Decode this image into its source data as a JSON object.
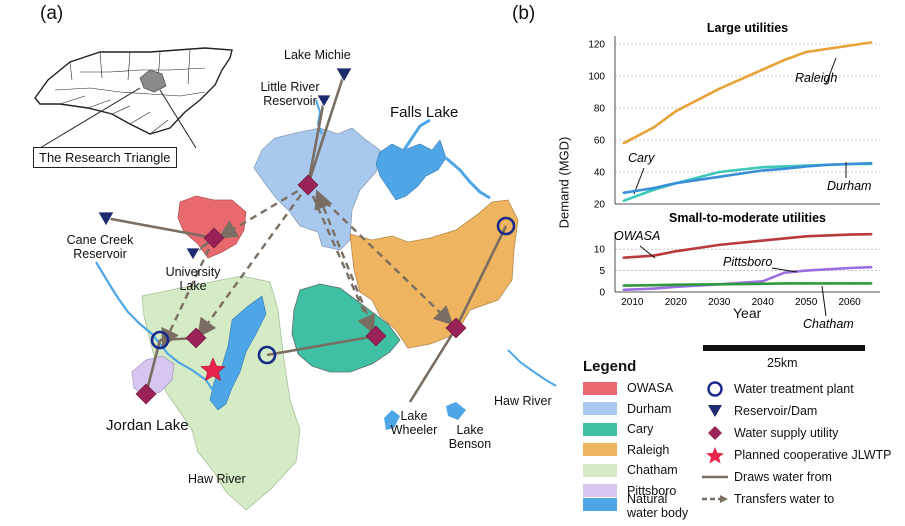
{
  "panel_a": {
    "tag": "(a)",
    "inset_label": "The Research Triangle",
    "labels": {
      "lake_michie": "Lake Michie",
      "little_river": "Little River Reservoir",
      "falls_lake": "Falls Lake",
      "cane_creek": "Cane Creek Reservoir",
      "university_lake": "University Lake",
      "jordan_lake": "Jordan Lake",
      "haw_river_south": "Haw River",
      "haw_river_east": "Haw River",
      "lake_wheeler": "Lake Wheeler",
      "lake_benson": "Lake Benson"
    },
    "scale_label": "25km"
  },
  "panel_b": {
    "tag": "(b)",
    "xlabel": "Year",
    "ylabel": "Demand (MGD)"
  },
  "chart_data": [
    {
      "type": "line",
      "title": "Large utilities",
      "x": [
        2008,
        2015,
        2020,
        2030,
        2040,
        2045,
        2050,
        2055,
        2060,
        2065
      ],
      "ylim": [
        20,
        125
      ],
      "yticks": [
        20,
        40,
        60,
        80,
        100,
        120
      ],
      "grid": true,
      "series": [
        {
          "name": "Raleigh",
          "color": "#e8a23a",
          "values": [
            58,
            68,
            78,
            92,
            104,
            110,
            115,
            117,
            119,
            121
          ]
        },
        {
          "name": "Cary",
          "color": "#3cc8b8",
          "values": [
            22,
            29,
            33,
            40,
            43,
            43.5,
            44,
            44.5,
            45,
            45
          ]
        },
        {
          "name": "Durham",
          "color": "#3a8fd8",
          "values": [
            27,
            30,
            33,
            37,
            41,
            42,
            43.5,
            44.5,
            45,
            45.5
          ]
        }
      ]
    },
    {
      "type": "line",
      "title": "Small-to-moderate utilities",
      "x": [
        2008,
        2015,
        2020,
        2030,
        2040,
        2045,
        2050,
        2055,
        2060,
        2065
      ],
      "xticks": [
        2010,
        2020,
        2030,
        2040,
        2050,
        2060
      ],
      "ylim": [
        0,
        14
      ],
      "yticks": [
        0,
        5,
        10
      ],
      "grid": true,
      "series": [
        {
          "name": "OWASA",
          "color": "#b83a3a",
          "values": [
            8,
            8.5,
            9.5,
            11,
            12,
            12.5,
            13,
            13.2,
            13.4,
            13.5
          ]
        },
        {
          "name": "Pittsboro",
          "color": "#9b6fe0",
          "values": [
            0.5,
            0.8,
            1.2,
            1.8,
            2.5,
            4.5,
            5,
            5.3,
            5.6,
            5.8
          ]
        },
        {
          "name": "Chatham",
          "color": "#2e9a3e",
          "values": [
            1.5,
            1.6,
            1.7,
            1.8,
            1.9,
            2.0,
            2.0,
            2.0,
            2.0,
            2.0
          ]
        }
      ]
    }
  ],
  "legend": {
    "title": "Legend",
    "areas": [
      {
        "label": "OWASA",
        "color": "#e86a6e"
      },
      {
        "label": "Durham",
        "color": "#a9c8ee"
      },
      {
        "label": "Cary",
        "color": "#3fbfa3"
      },
      {
        "label": "Raleigh",
        "color": "#eeb45f"
      },
      {
        "label": "Chatham",
        "color": "#d4ebc6"
      },
      {
        "label": "Pittsboro",
        "color": "#d6c6f0"
      },
      {
        "label": "Natural water body",
        "color": "#4ea6e6"
      }
    ],
    "symbols": [
      {
        "label": "Water treatment plant",
        "icon": "circle-icon"
      },
      {
        "label": "Reservoir/Dam",
        "icon": "triangle-icon"
      },
      {
        "label": "Water supply utility",
        "icon": "diamond-icon"
      },
      {
        "label": "Planned cooperative JLWTP",
        "icon": "star-icon"
      },
      {
        "label": "Draws water from",
        "icon": "solid-line-icon"
      },
      {
        "label": "Transfers water to",
        "icon": "dashed-arrow-icon"
      }
    ]
  }
}
